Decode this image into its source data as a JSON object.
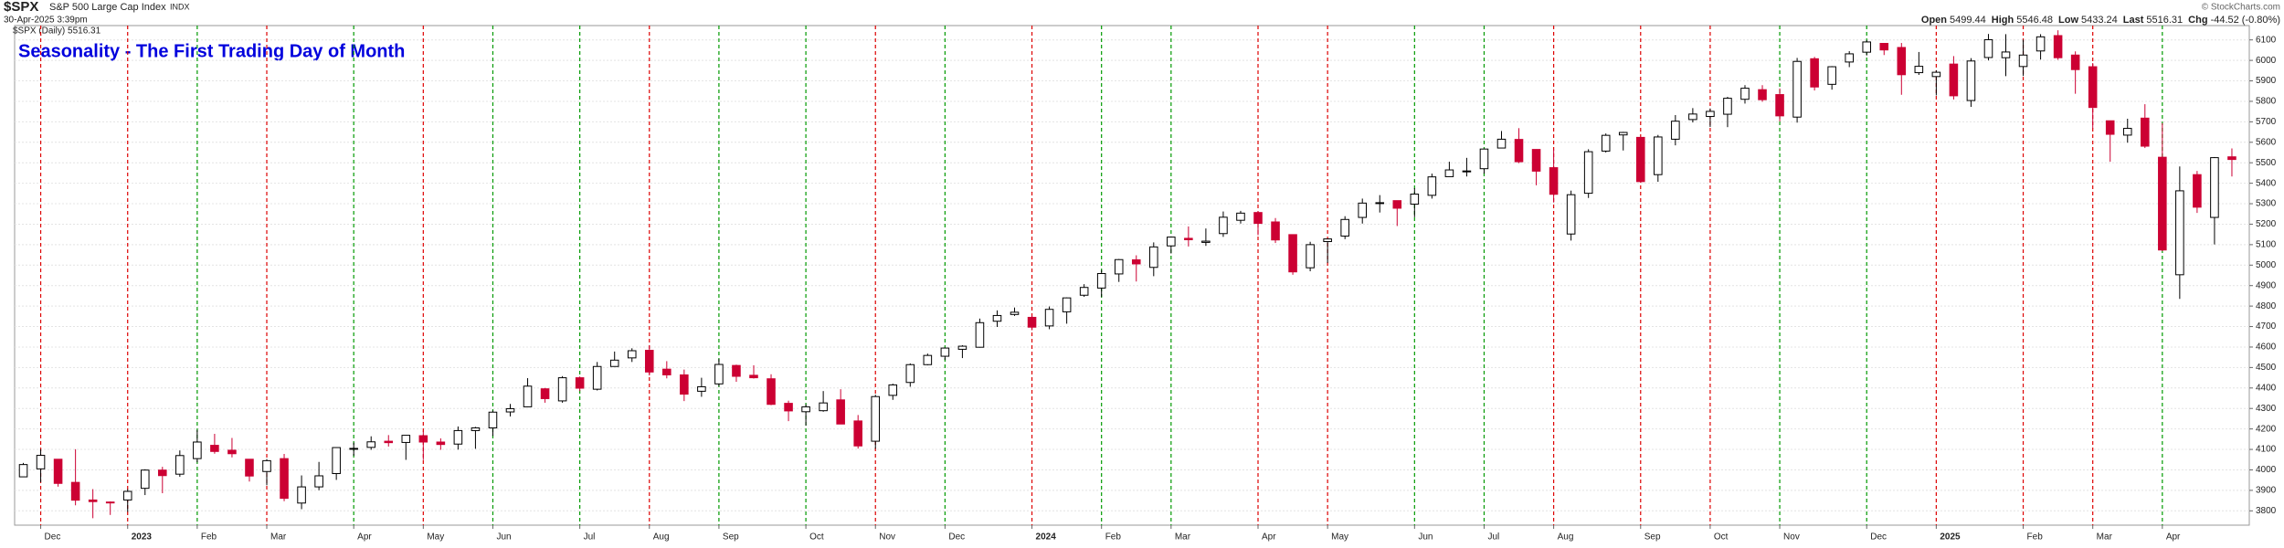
{
  "header": {
    "symbol": "$SPX",
    "name": "S&P 500 Large Cap Index",
    "exchange": "INDX",
    "timestamp": "30-Apr-2025 3:39pm",
    "legend": "$SPX (Daily) 5516.31",
    "quote": [
      [
        "Open",
        "5499.44"
      ],
      [
        "High",
        "5546.48"
      ],
      [
        "Low",
        "5433.24"
      ],
      [
        "Last",
        "5516.31"
      ],
      [
        "Chg",
        "-44.52 (-0.80%)"
      ]
    ],
    "credit": "© StockCharts.com"
  },
  "chart_data": {
    "type": "candlestick",
    "title": "Seasonality - The First Trading Day of Month",
    "up_color": "#000000",
    "down_color": "#cc0033",
    "title_color": "#0000dd",
    "xlim": [
      -0.5,
      128
    ],
    "ylim": [
      3730,
      6170
    ],
    "yticks": [
      3800,
      3900,
      4000,
      4100,
      4200,
      4300,
      4400,
      4500,
      4600,
      4700,
      4800,
      4900,
      5000,
      5100,
      5200,
      5300,
      5400,
      5500,
      5600,
      5700,
      5800,
      5900,
      6000,
      6100
    ],
    "grid": true,
    "xticks": [
      {
        "value": 1,
        "label": "Dec",
        "color": "#dd0000"
      },
      {
        "value": 6,
        "label": "2023",
        "color": "#dd0000",
        "bold": true
      },
      {
        "value": 10,
        "label": "Feb",
        "color": "#009900"
      },
      {
        "value": 14,
        "label": "Mar",
        "color": "#dd0000"
      },
      {
        "value": 19,
        "label": "Apr",
        "color": "#009900"
      },
      {
        "value": 23,
        "label": "May",
        "color": "#dd0000"
      },
      {
        "value": 27,
        "label": "Jun",
        "color": "#009900"
      },
      {
        "value": 32,
        "label": "Jul",
        "color": "#009900"
      },
      {
        "value": 36,
        "label": "Aug",
        "color": "#dd0000"
      },
      {
        "value": 40,
        "label": "Sep",
        "color": "#009900"
      },
      {
        "value": 45,
        "label": "Oct",
        "color": "#009900"
      },
      {
        "value": 49,
        "label": "Nov",
        "color": "#dd0000"
      },
      {
        "value": 53,
        "label": "Dec",
        "color": "#009900"
      },
      {
        "value": 58,
        "label": "2024",
        "color": "#dd0000",
        "bold": true
      },
      {
        "value": 62,
        "label": "Feb",
        "color": "#009900"
      },
      {
        "value": 66,
        "label": "Mar",
        "color": "#009900"
      },
      {
        "value": 71,
        "label": "Apr",
        "color": "#dd0000"
      },
      {
        "value": 75,
        "label": "May",
        "color": "#dd0000"
      },
      {
        "value": 80,
        "label": "Jun",
        "color": "#009900"
      },
      {
        "value": 84,
        "label": "Jul",
        "color": "#009900"
      },
      {
        "value": 88,
        "label": "Aug",
        "color": "#dd0000"
      },
      {
        "value": 93,
        "label": "Sep",
        "color": "#dd0000"
      },
      {
        "value": 97,
        "label": "Oct",
        "color": "#dd0000"
      },
      {
        "value": 101,
        "label": "Nov",
        "color": "#009900"
      },
      {
        "value": 106,
        "label": "Dec",
        "color": "#009900"
      },
      {
        "value": 110,
        "label": "2025",
        "color": "#dd0000",
        "bold": true
      },
      {
        "value": 115,
        "label": "Feb",
        "color": "#dd0000"
      },
      {
        "value": 119,
        "label": "Mar",
        "color": "#dd0000"
      },
      {
        "value": 123,
        "label": "Apr",
        "color": "#009900"
      }
    ],
    "open": [
      3966,
      4005,
      4052,
      3939,
      3853,
      3843,
      3853,
      3910,
      3999,
      3979,
      4055,
      4120,
      4096,
      4052,
      3992,
      4055,
      3838,
      3917,
      3982,
      4102,
      4110,
      4140,
      4134,
      4167,
      4136,
      4126,
      4192,
      4205,
      4283,
      4308,
      4396,
      4337,
      4450,
      4394,
      4505,
      4547,
      4584,
      4492,
      4464,
      4384,
      4420,
      4510,
      4462,
      4445,
      4325,
      4284,
      4289,
      4342,
      4239,
      4140,
      4364,
      4427,
      4514,
      4555,
      4589,
      4599,
      4726,
      4759,
      4745,
      4703,
      4772,
      4853,
      4888,
      4957,
      5026,
      4989,
      5094,
      5131,
      5111,
      5154,
      5219,
      5257,
      5211,
      5149,
      4987,
      5115,
      5142,
      5233,
      5305,
      5315,
      5298,
      5341,
      5432,
      5460,
      5471,
      5572,
      5614,
      5565,
      5476,
      5152,
      5351,
      5557,
      5636,
      5624,
      5442,
      5615,
      5711,
      5726,
      5737,
      5810,
      5857,
      5833,
      5723,
      6008,
      5883,
      5992,
      6040,
      6083,
      6063,
      5940,
      5921,
      5982,
      5804,
      6014,
      6013,
      5970,
      6046,
      6121,
      6026,
      5969,
      5705,
      5635,
      5718,
      5527,
      4953,
      5442,
      5233,
      5529
    ],
    "high": [
      4034,
      4101,
      4052,
      4101,
      3906,
      3846,
      3906,
      4003,
      4015,
      4095,
      4195,
      4176,
      4156,
      4052,
      4053,
      4078,
      3973,
      4039,
      4110,
      4133,
      4164,
      4170,
      4170,
      4187,
      4154,
      4212,
      4210,
      4290,
      4322,
      4448,
      4400,
      4458,
      4456,
      4527,
      4578,
      4594,
      4607,
      4531,
      4490,
      4450,
      4542,
      4514,
      4511,
      4467,
      4338,
      4320,
      4385,
      4394,
      4268,
      4367,
      4421,
      4520,
      4568,
      4598,
      4609,
      4739,
      4779,
      4793,
      4755,
      4798,
      4842,
      4907,
      4976,
      5030,
      5048,
      5111,
      5140,
      5189,
      5179,
      5262,
      5265,
      5264,
      5230,
      5150,
      5114,
      5130,
      5239,
      5325,
      5342,
      5315,
      5376,
      5447,
      5505,
      5524,
      5570,
      5655,
      5669,
      5566,
      5566,
      5364,
      5566,
      5643,
      5651,
      5626,
      5636,
      5733,
      5767,
      5765,
      5822,
      5879,
      5879,
      5863,
      6012,
      6017,
      5972,
      6045,
      6099,
      6085,
      6085,
      6041,
      5952,
      6021,
      6011,
      6129,
      6128,
      6101,
      6128,
      6147,
      6044,
      5987,
      5705,
      5715,
      5786,
      5693,
      5482,
      5460,
      5528,
      5570
    ],
    "low": [
      3966,
      3940,
      3918,
      3827,
      3764,
      3780,
      3795,
      3877,
      3886,
      3966,
      4037,
      4079,
      4061,
      3943,
      3925,
      3847,
      3808,
      3901,
      3951,
      4069,
      4098,
      4114,
      4049,
      4048,
      4098,
      4099,
      4103,
      4166,
      4261,
      4307,
      4328,
      4328,
      4385,
      4388,
      4504,
      4527,
      4461,
      4447,
      4336,
      4357,
      4409,
      4430,
      4446,
      4316,
      4238,
      4216,
      4284,
      4223,
      4104,
      4103,
      4342,
      4406,
      4511,
      4537,
      4546,
      4597,
      4698,
      4752,
      4682,
      4687,
      4714,
      4845,
      4845,
      4918,
      4920,
      4946,
      5057,
      5091,
      5094,
      5138,
      5203,
      5146,
      5108,
      4953,
      4970,
      5011,
      5127,
      5203,
      5257,
      5191,
      5234,
      5325,
      5433,
      5433,
      5447,
      5570,
      5498,
      5390,
      5306,
      5120,
      5328,
      5550,
      5560,
      5403,
      5407,
      5585,
      5697,
      5675,
      5674,
      5789,
      5798,
      5702,
      5696,
      5853,
      5857,
      5967,
      6024,
      6026,
      5832,
      5929,
      5829,
      5809,
      5773,
      6000,
      5923,
      5924,
      6004,
      6003,
      5837,
      5666,
      5505,
      5598,
      5572,
      5069,
      4835,
      5255,
      5101,
      5433
    ],
    "close": [
      4026,
      4071,
      3934,
      3852,
      3845,
      3839,
      3895,
      3999,
      3972,
      4070,
      4136,
      4090,
      4079,
      3970,
      4045,
      3861,
      3917,
      3971,
      4109,
      4105,
      4137,
      4133,
      4169,
      4136,
      4124,
      4192,
      4205,
      4282,
      4299,
      4409,
      4348,
      4450,
      4399,
      4505,
      4536,
      4582,
      4478,
      4464,
      4370,
      4406,
      4515,
      4457,
      4450,
      4320,
      4288,
      4308,
      4327,
      4224,
      4117,
      4358,
      4415,
      4514,
      4559,
      4595,
      4604,
      4719,
      4754,
      4770,
      4697,
      4784,
      4840,
      4891,
      4959,
      5027,
      5006,
      5089,
      5137,
      5124,
      5117,
      5234,
      5254,
      5204,
      5123,
      4967,
      5100,
      5128,
      5223,
      5303,
      5305,
      5278,
      5347,
      5431,
      5465,
      5460,
      5567,
      5615,
      5505,
      5459,
      5346,
      5344,
      5554,
      5634,
      5648,
      5408,
      5626,
      5703,
      5738,
      5751,
      5815,
      5864,
      5808,
      5729,
      5995,
      5870,
      5969,
      6032,
      6090,
      6051,
      5930,
      5971,
      5942,
      5827,
      5997,
      6101,
      6041,
      6026,
      6115,
      6013,
      5955,
      5770,
      5639,
      5668,
      5581,
      5074,
      5363,
      5283,
      5525,
      5516
    ]
  }
}
